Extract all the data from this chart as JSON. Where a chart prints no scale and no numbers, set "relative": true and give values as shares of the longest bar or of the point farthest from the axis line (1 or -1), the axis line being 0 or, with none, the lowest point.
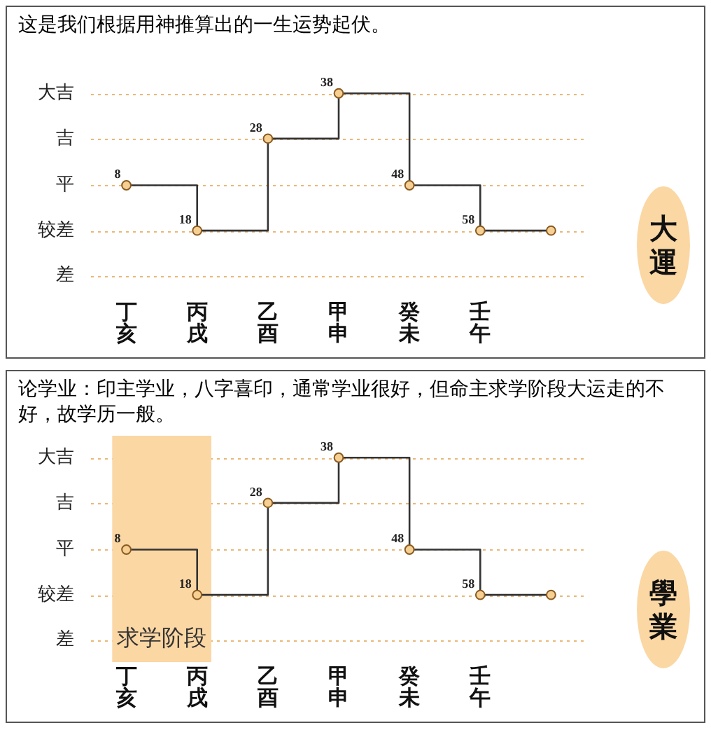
{
  "chart_data": [
    {
      "type": "step",
      "title": "这是我们根据用神推算出的一生运势起伏。",
      "marker": "circle",
      "relative": true,
      "categories": [
        "丁亥",
        "丙戌",
        "乙酉",
        "甲申",
        "癸未",
        "壬午",
        null
      ],
      "series": [
        {
          "color": "#333333",
          "values": [
            0.33,
            0,
            0.67,
            1,
            0.33,
            0,
            0
          ]
        }
      ],
      "ref_lines": [
        {
          "axis": "y",
          "value": 1,
          "label": "大吉",
          "color": "#e9b878",
          "line_style": "dotted"
        },
        {
          "axis": "y",
          "value": 0.67,
          "label": "吉",
          "color": "#e9b878",
          "line_style": "dotted"
        },
        {
          "axis": "y",
          "value": 0.33,
          "label": "平",
          "color": "#e9b878",
          "line_style": "dotted"
        },
        {
          "axis": "y",
          "value": 0,
          "label": "较差",
          "color": "#e9b878",
          "line_style": "dotted"
        },
        {
          "axis": "y",
          "value": -0.33,
          "label": "差",
          "color": "#e9b878",
          "line_style": "dotted"
        }
      ],
      "annotations": [
        {
          "text": "8",
          "x": "丁亥",
          "y": 0.33
        },
        {
          "text": "18",
          "x": "丙戌",
          "y": 0
        },
        {
          "text": "28",
          "x": "乙酉",
          "y": 0.67
        },
        {
          "text": "38",
          "x": "甲申",
          "y": 1
        },
        {
          "text": "48",
          "x": "癸未",
          "y": 0.33
        },
        {
          "text": "58",
          "x": "壬午",
          "y": 0
        },
        "大運"
      ]
    },
    {
      "type": "step",
      "title": "论学业：印主学业，八字喜印，通常学业很好，但命主求学阶段大运走的不好，故学历一般。",
      "marker": "circle",
      "relative": true,
      "categories": [
        "丁亥",
        "丙戌",
        "乙酉",
        "甲申",
        "癸未",
        "壬午",
        null
      ],
      "series": [
        {
          "color": "#333333",
          "values": [
            0.33,
            0,
            0.67,
            1,
            0.33,
            0,
            0
          ]
        }
      ],
      "ref_lines": [
        {
          "axis": "y",
          "value": 1,
          "label": "大吉",
          "color": "#e9b878",
          "line_style": "dotted"
        },
        {
          "axis": "y",
          "value": 0.67,
          "label": "吉",
          "color": "#e9b878",
          "line_style": "dotted"
        },
        {
          "axis": "y",
          "value": 0.33,
          "label": "平",
          "color": "#e9b878",
          "line_style": "dotted"
        },
        {
          "axis": "y",
          "value": 0,
          "label": "较差",
          "color": "#e9b878",
          "line_style": "dotted"
        },
        {
          "axis": "y",
          "value": -0.33,
          "label": "差",
          "color": "#e9b878",
          "line_style": "dotted"
        }
      ],
      "bands": [
        {
          "axis": "x",
          "from": "丁亥",
          "to": "丙戌",
          "label": "求学阶段",
          "color": "#fbd7a4"
        }
      ],
      "annotations": [
        {
          "text": "8",
          "x": "丁亥",
          "y": 0.33
        },
        {
          "text": "18",
          "x": "丙戌",
          "y": 0
        },
        {
          "text": "28",
          "x": "乙酉",
          "y": 0.67
        },
        {
          "text": "38",
          "x": "甲申",
          "y": 1
        },
        {
          "text": "48",
          "x": "癸未",
          "y": 0.33
        },
        {
          "text": "58",
          "x": "壬午",
          "y": 0
        },
        "學業"
      ]
    }
  ]
}
